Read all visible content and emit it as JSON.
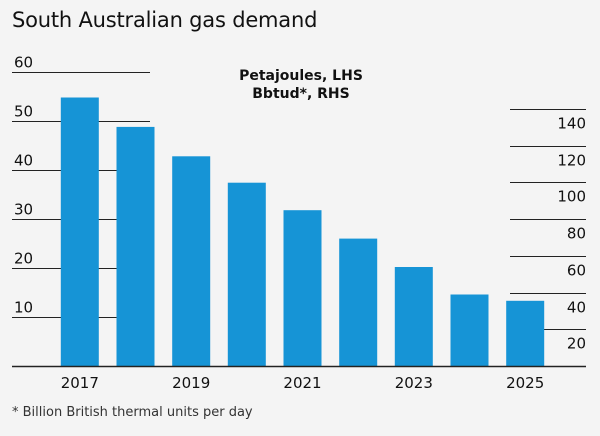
{
  "title": "South Australian gas demand",
  "footnote": "* Billion British thermal units per day",
  "legend": [
    "Petajoules, LHS",
    "Bbtud*, RHS"
  ],
  "colors": {
    "bar": "#1694d6",
    "axis": "#222222",
    "grid": "#222222"
  },
  "chart_data": {
    "type": "bar",
    "categories": [
      "2017",
      "2018",
      "2019",
      "2020",
      "2021",
      "2022",
      "2023",
      "2024",
      "2025"
    ],
    "x_tick_labels": [
      "2017",
      "2019",
      "2021",
      "2023",
      "2025"
    ],
    "series": [
      {
        "name": "Petajoules, LHS",
        "values": [
          54.8,
          48.8,
          42.8,
          37.4,
          31.8,
          26.0,
          20.2,
          14.6,
          13.3
        ]
      }
    ],
    "y_left": {
      "min": 0,
      "max": 60,
      "ticks": [
        10,
        20,
        30,
        40,
        50,
        60
      ]
    },
    "y_right": {
      "min": 0,
      "max": 160,
      "ticks": [
        20,
        40,
        60,
        80,
        100,
        120,
        140
      ]
    },
    "grid": true
  }
}
